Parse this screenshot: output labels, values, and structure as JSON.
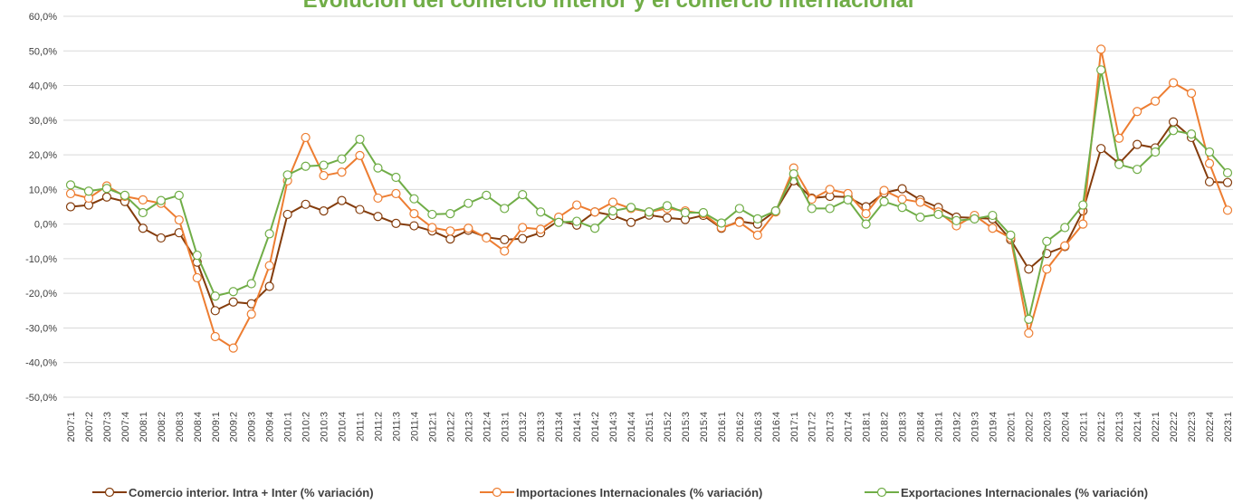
{
  "chart_data": {
    "type": "line",
    "title": "Evolución del comercio interior y el comercio internacional",
    "categories": [
      "2007:1",
      "2007:2",
      "2007:3",
      "2007:4",
      "2008:1",
      "2008:2",
      "2008:3",
      "2008:4",
      "2009:1",
      "2009:2",
      "2009:3",
      "2009:4",
      "2010:1",
      "2010:2",
      "2010:3",
      "2010:4",
      "2011:1",
      "2011:2",
      "2011:3",
      "2011:4",
      "2012:1",
      "2012:2",
      "2012:3",
      "2012:4",
      "2013:1",
      "2013:2",
      "2013:3",
      "2013:4",
      "2014:1",
      "2014:2",
      "2014:3",
      "2014:4",
      "2015:1",
      "2015:2",
      "2015:3",
      "2015:4",
      "2016:1",
      "2016:2",
      "2016:3",
      "2016:4",
      "2017:1",
      "2017:2",
      "2017:3",
      "2017:4",
      "2018:1",
      "2018:2",
      "2018:3",
      "2018:4",
      "2019:1",
      "2019:2",
      "2019:3",
      "2019:4",
      "2020:1",
      "2020:2",
      "2020:3",
      "2020:4",
      "2021:1",
      "2021:2",
      "2021:3",
      "2021:4",
      "2022:1",
      "2022:2",
      "2022:3",
      "2022:4",
      "2023:1"
    ],
    "series": [
      {
        "name": "Comercio interior. Intra + Inter (% variación)",
        "color": "#843c0c",
        "values": [
          5,
          5.5,
          7.8,
          6.5,
          -1.2,
          -4,
          -2.5,
          -11,
          -25,
          -22.5,
          -23,
          -18,
          2.8,
          5.7,
          3.8,
          6.8,
          4.2,
          2.2,
          0.2,
          -0.5,
          -2,
          -4.3,
          -1.8,
          -3.8,
          -4.5,
          -4.2,
          -2.5,
          1,
          -0.3,
          3.5,
          2.5,
          0.5,
          2.6,
          1.8,
          1.3,
          2.5,
          -1.2,
          0.8,
          0,
          3.8,
          12.5,
          7.5,
          8,
          7.8,
          5,
          9,
          10.2,
          7,
          4.8,
          2,
          1.8,
          1.5,
          -4.5,
          -13,
          -8.5,
          -6.5,
          3.8,
          21.8,
          17.5,
          23,
          22,
          29.5,
          25,
          12.2,
          12
        ]
      },
      {
        "name": "Importaciones Internacionales (% variación)",
        "color": "#ed7d31",
        "values": [
          8.8,
          7.5,
          11,
          8,
          7,
          6,
          1.2,
          -15.5,
          -32.5,
          -35.8,
          -26,
          -12,
          12.5,
          25,
          14,
          15,
          19.8,
          7.5,
          8.8,
          3,
          -1,
          -2,
          -1.2,
          -4,
          -7.8,
          -1,
          -1.5,
          2,
          5.5,
          3.5,
          6.3,
          4.5,
          3.5,
          4.5,
          3.8,
          3,
          -1,
          0.5,
          -3.2,
          3.5,
          16.2,
          7.2,
          10,
          8.8,
          3,
          9.7,
          7.2,
          6.3,
          3.5,
          -0.5,
          2.5,
          -1.2,
          -4,
          -31.5,
          -13,
          -6.3,
          0,
          50.5,
          24.8,
          32.5,
          35.5,
          40.8,
          37.8,
          17.5,
          4
        ]
      },
      {
        "name": "Exportaciones Internacionales (% variación)",
        "color": "#70ad47",
        "values": [
          11.3,
          9.5,
          10.3,
          8.3,
          3.3,
          6.8,
          8.3,
          -9,
          -20.8,
          -19.5,
          -17.2,
          -2.8,
          14.2,
          16.7,
          17,
          18.8,
          24.5,
          16.2,
          13.5,
          7.3,
          2.8,
          3,
          6,
          8.3,
          4.5,
          8.5,
          3.5,
          0.5,
          0.8,
          -1.2,
          3.8,
          4.8,
          3.5,
          5.3,
          3.3,
          3.3,
          0.3,
          4.5,
          1.5,
          3.8,
          14.5,
          4.5,
          4.5,
          7,
          0,
          6.5,
          4.8,
          2,
          2.8,
          1,
          1.5,
          2.5,
          -3.2,
          -27.5,
          -5,
          -1,
          5.5,
          44.5,
          17.2,
          15.8,
          20.8,
          27,
          26,
          20.8,
          14.8
        ]
      }
    ],
    "ylim": [
      -50,
      60
    ],
    "yticks": [
      {
        "value": -50,
        "label": "-50,0%"
      },
      {
        "value": -40,
        "label": "-40,0%"
      },
      {
        "value": -30,
        "label": "-30,0%"
      },
      {
        "value": -20,
        "label": "-20,0%"
      },
      {
        "value": -10,
        "label": "-10,0%"
      },
      {
        "value": 0,
        "label": "0,0%"
      },
      {
        "value": 10,
        "label": "10,0%"
      },
      {
        "value": 20,
        "label": "20,0%"
      },
      {
        "value": 30,
        "label": "30,0%"
      },
      {
        "value": 40,
        "label": "40,0%"
      },
      {
        "value": 50,
        "label": "50,0%"
      },
      {
        "value": 60,
        "label": "60,0%"
      }
    ],
    "grid": true,
    "legend": "bottom"
  }
}
